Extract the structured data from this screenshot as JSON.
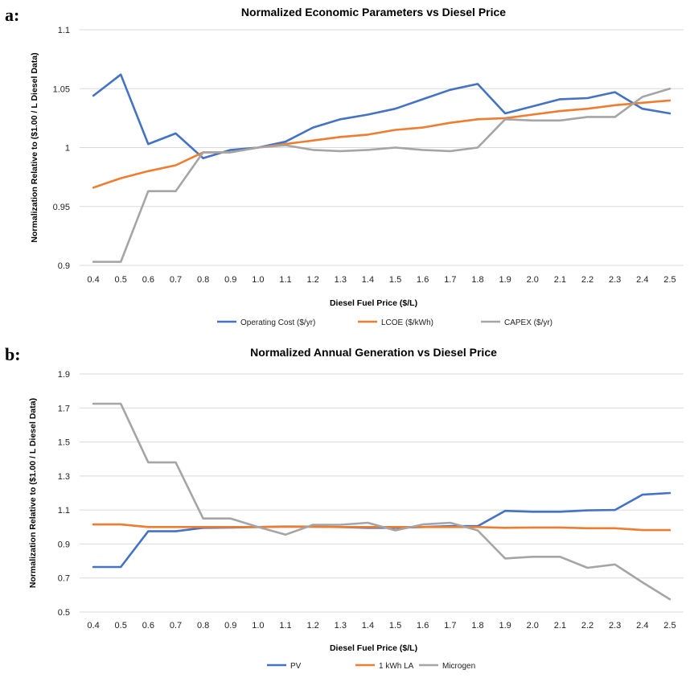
{
  "panels": [
    {
      "label": "a:"
    },
    {
      "label": "b:"
    }
  ],
  "chart_data": [
    {
      "type": "line",
      "title": "Normalized Economic Parameters vs Diesel Price",
      "xlabel": "Diesel Fuel Price ($/L)",
      "ylabel": "Normalization Relative to ($1.00 / L Diesel Data)",
      "categories": [
        "0.4",
        "0.5",
        "0.6",
        "0.7",
        "0.8",
        "0.9",
        "1.0",
        "1.1",
        "1.2",
        "1.3",
        "1.4",
        "1.5",
        "1.6",
        "1.7",
        "1.8",
        "1.9",
        "2.0",
        "2.1",
        "2.2",
        "2.3",
        "2.4",
        "2.5"
      ],
      "ylim": [
        0.9,
        1.1
      ],
      "yticks": [
        "0.9",
        "0.95",
        "1",
        "1.05",
        "1.1"
      ],
      "grid": true,
      "legend_position": "bottom",
      "series": [
        {
          "name": "Operating Cost ($/yr)",
          "color": "#4472C4",
          "values": [
            1.044,
            1.062,
            1.003,
            1.012,
            0.991,
            0.998,
            1.0,
            1.005,
            1.017,
            1.024,
            1.028,
            1.033,
            1.041,
            1.049,
            1.054,
            1.029,
            1.035,
            1.041,
            1.042,
            1.047,
            1.033,
            1.029
          ]
        },
        {
          "name": "LCOE ($/kWh)",
          "color": "#ED7D31",
          "values": [
            0.966,
            0.974,
            0.98,
            0.985,
            0.996,
            0.996,
            1.0,
            1.003,
            1.006,
            1.009,
            1.011,
            1.015,
            1.017,
            1.021,
            1.024,
            1.025,
            1.028,
            1.031,
            1.033,
            1.036,
            1.038,
            1.04
          ]
        },
        {
          "name": "CAPEX ($/yr)",
          "color": "#A5A5A5",
          "values": [
            0.903,
            0.903,
            0.963,
            0.963,
            0.996,
            0.996,
            1.0,
            1.002,
            0.998,
            0.997,
            0.998,
            1.0,
            0.998,
            0.997,
            1.0,
            1.024,
            1.023,
            1.023,
            1.026,
            1.026,
            1.043,
            1.05
          ]
        }
      ]
    },
    {
      "type": "line",
      "title": "Normalized Annual Generation vs Diesel Price",
      "xlabel": "Diesel Fuel Price ($/L)",
      "ylabel": "Normalization Relative to ($1.00 / L Diesel Data)",
      "categories": [
        "0.4",
        "0.5",
        "0.6",
        "0.7",
        "0.8",
        "0.9",
        "1.0",
        "1.1",
        "1.2",
        "1.3",
        "1.4",
        "1.5",
        "1.6",
        "1.7",
        "1.8",
        "1.9",
        "2.0",
        "2.1",
        "2.2",
        "2.3",
        "2.4",
        "2.5"
      ],
      "ylim": [
        0.5,
        1.9
      ],
      "yticks": [
        "0.5",
        "0.7",
        "0.9",
        "1.1",
        "1.3",
        "1.5",
        "1.7",
        "1.9"
      ],
      "grid": true,
      "legend_position": "bottom",
      "series": [
        {
          "name": "PV",
          "color": "#4472C4",
          "values": [
            0.765,
            0.765,
            0.975,
            0.975,
            0.995,
            0.997,
            1.0,
            1.003,
            1.002,
            1.0,
            0.995,
            0.995,
            1.0,
            1.005,
            1.005,
            1.095,
            1.09,
            1.09,
            1.098,
            1.1,
            1.19,
            1.2
          ]
        },
        {
          "name": "1 kWh LA",
          "color": "#ED7D31",
          "values": [
            1.015,
            1.015,
            1.0,
            1.0,
            1.0,
            1.0,
            1.0,
            1.002,
            1.002,
            1.0,
            1.0,
            1.0,
            1.0,
            1.0,
            1.0,
            0.995,
            0.997,
            0.997,
            0.993,
            0.993,
            0.982,
            0.982
          ]
        },
        {
          "name": "Microgen",
          "color": "#A5A5A5",
          "values": [
            1.725,
            1.725,
            1.38,
            1.38,
            1.05,
            1.05,
            1.0,
            0.955,
            1.013,
            1.013,
            1.025,
            0.98,
            1.015,
            1.025,
            0.98,
            0.815,
            0.825,
            0.825,
            0.76,
            0.78,
            0.675,
            0.575
          ]
        }
      ]
    }
  ]
}
